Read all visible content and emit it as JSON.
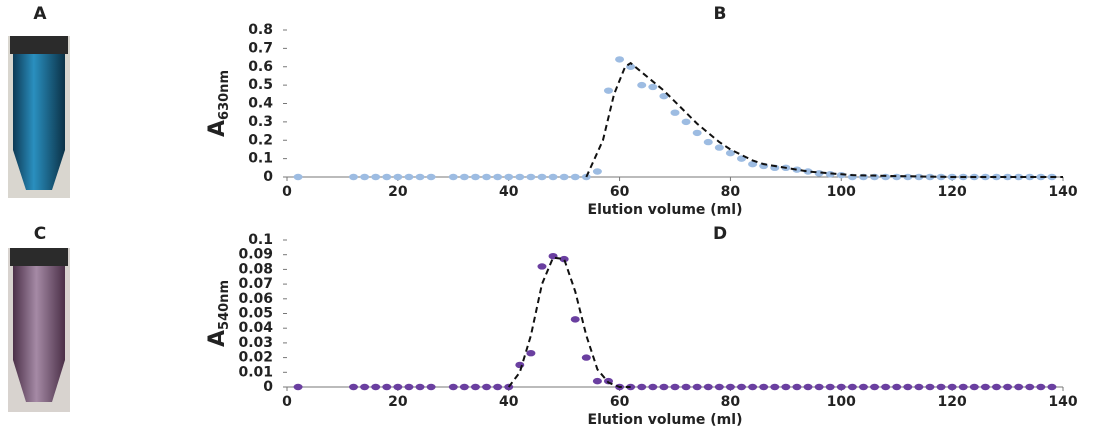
{
  "photo_labels": [
    "A",
    "C"
  ],
  "chart_data": [
    {
      "type": "scatter",
      "title": "B",
      "x_label": "Elution volume (ml)",
      "y_label": "A",
      "y_label_subscript": "630nm",
      "xlim": [
        0,
        140
      ],
      "xticks": [
        0,
        20,
        40,
        60,
        80,
        100,
        120,
        140
      ],
      "ylim": [
        0,
        0.8
      ],
      "yticks": [
        0,
        0.1,
        0.2,
        0.3,
        0.4,
        0.5,
        0.6,
        0.7,
        0.8
      ],
      "series": [
        {
          "mode": "markers",
          "color": "#9dbce2",
          "x": [
            2,
            12,
            14,
            16,
            18,
            20,
            22,
            24,
            26,
            30,
            32,
            34,
            36,
            38,
            40,
            42,
            44,
            46,
            48,
            50,
            52,
            54,
            56,
            58,
            60,
            62,
            64,
            66,
            68,
            70,
            72,
            74,
            76,
            78,
            80,
            82,
            84,
            86,
            88,
            90,
            92,
            94,
            96,
            98,
            100,
            102,
            104,
            106,
            108,
            110,
            112,
            114,
            116,
            118,
            120,
            122,
            124,
            126,
            128,
            130,
            132,
            134,
            136,
            138
          ],
          "values": [
            0,
            0,
            0,
            0,
            0,
            0,
            0,
            0,
            0,
            0,
            0,
            0,
            0,
            0,
            0,
            0,
            0,
            0,
            0,
            0,
            0,
            0,
            0.03,
            0.47,
            0.64,
            0.6,
            0.5,
            0.49,
            0.44,
            0.35,
            0.3,
            0.24,
            0.19,
            0.16,
            0.13,
            0.1,
            0.07,
            0.06,
            0.05,
            0.05,
            0.04,
            0.03,
            0.02,
            0.015,
            0.01,
            0,
            0,
            0,
            0,
            0,
            0,
            0,
            0,
            0,
            0,
            0,
            0,
            0,
            0,
            0,
            0,
            0,
            0,
            0
          ]
        },
        {
          "mode": "dashed-line",
          "color": "#111111",
          "x": [
            54,
            57,
            59,
            61,
            62,
            64,
            66,
            68,
            70,
            72,
            74,
            76,
            78,
            80,
            82,
            84,
            86,
            88,
            90,
            94,
            98,
            102,
            110,
            120,
            130,
            140
          ],
          "values": [
            0,
            0.2,
            0.45,
            0.6,
            0.62,
            0.57,
            0.52,
            0.47,
            0.41,
            0.35,
            0.29,
            0.24,
            0.19,
            0.15,
            0.12,
            0.09,
            0.07,
            0.06,
            0.05,
            0.03,
            0.02,
            0.01,
            0.005,
            0,
            0,
            0
          ]
        }
      ]
    },
    {
      "type": "scatter",
      "title": "D",
      "x_label": "Elution volume (ml)",
      "y_label": "A",
      "y_label_subscript": "540nm",
      "xlim": [
        0,
        140
      ],
      "xticks": [
        0,
        20,
        40,
        60,
        80,
        100,
        120,
        140
      ],
      "ylim": [
        0,
        0.1
      ],
      "yticks": [
        0,
        0.01,
        0.02,
        0.03,
        0.04,
        0.05,
        0.06,
        0.07,
        0.08,
        0.09,
        0.1
      ],
      "series": [
        {
          "mode": "markers",
          "color": "#6a3fa0",
          "x": [
            2,
            12,
            14,
            16,
            18,
            20,
            22,
            24,
            26,
            30,
            32,
            34,
            36,
            38,
            40,
            42,
            44,
            46,
            48,
            50,
            52,
            54,
            56,
            58,
            60,
            62,
            64,
            66,
            68,
            70,
            72,
            74,
            76,
            78,
            80,
            82,
            84,
            86,
            88,
            90,
            92,
            94,
            96,
            98,
            100,
            102,
            104,
            106,
            108,
            110,
            112,
            114,
            116,
            118,
            120,
            122,
            124,
            126,
            128,
            130,
            132,
            134,
            136,
            138
          ],
          "values": [
            0,
            0,
            0,
            0,
            0,
            0,
            0,
            0,
            0,
            0,
            0,
            0,
            0,
            0,
            0,
            0.015,
            0.023,
            0.082,
            0.089,
            0.087,
            0.046,
            0.02,
            0.004,
            0.004,
            0,
            0,
            0,
            0,
            0,
            0,
            0,
            0,
            0,
            0,
            0,
            0,
            0,
            0,
            0,
            0,
            0,
            0,
            0,
            0,
            0,
            0,
            0,
            0,
            0,
            0,
            0,
            0,
            0,
            0,
            0,
            0,
            0,
            0,
            0,
            0,
            0,
            0,
            0,
            0
          ]
        },
        {
          "mode": "dashed-line",
          "color": "#111111",
          "x": [
            40,
            42,
            44,
            46,
            48,
            50,
            52,
            54,
            56,
            58,
            60,
            62
          ],
          "values": [
            0,
            0.01,
            0.035,
            0.07,
            0.088,
            0.087,
            0.065,
            0.035,
            0.012,
            0.003,
            0,
            0
          ]
        }
      ]
    }
  ]
}
